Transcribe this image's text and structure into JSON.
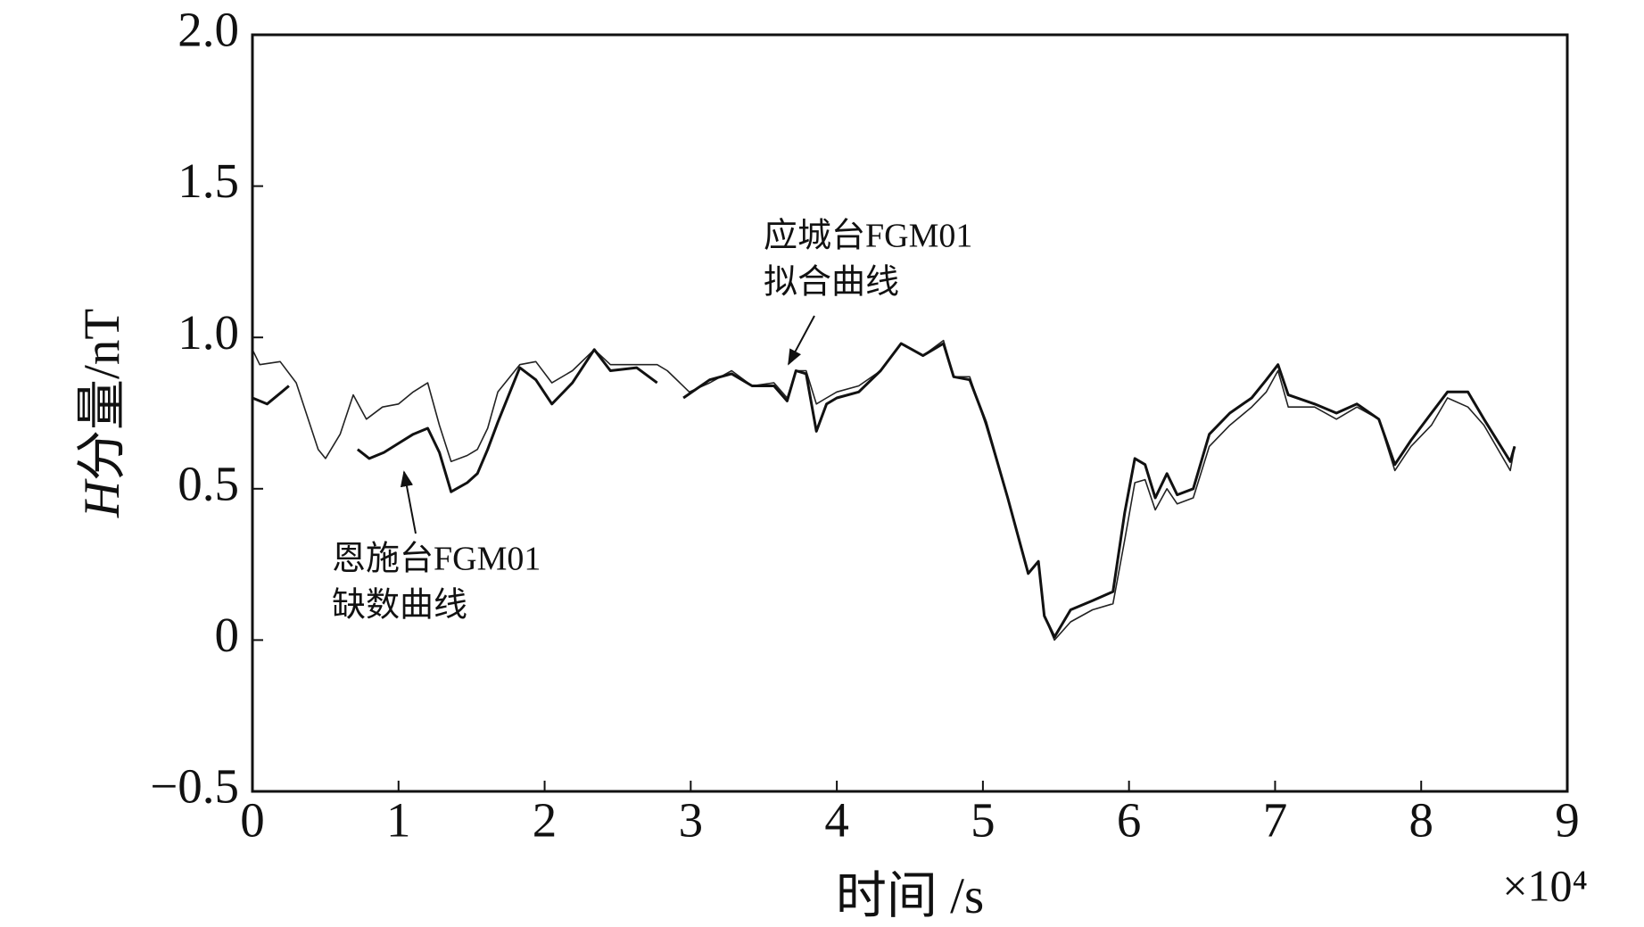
{
  "chart_data": {
    "type": "line",
    "xlabel": "时间 /s",
    "x_scale_label": "×10⁴",
    "ylabel_var": "H",
    "ylabel": "分量/nT",
    "xlim": [
      0,
      9
    ],
    "xticks": [
      0,
      1,
      2,
      3,
      4,
      5,
      6,
      7,
      8,
      9
    ],
    "ylim": [
      -0.5,
      2
    ],
    "yticks": [
      {
        "value": -0.5,
        "label": "−0.5"
      },
      0,
      0.5,
      {
        "value": 1,
        "label": "1.0"
      },
      1.5,
      {
        "value": 2,
        "label": "2.0"
      }
    ],
    "grid": false,
    "series": [
      {
        "color": "#222222",
        "x": [
          0,
          0.05,
          0.19,
          0.3,
          0.45,
          0.5,
          0.6,
          0.69,
          0.78,
          0.89,
          1.0,
          1.1,
          1.2,
          1.28,
          1.36,
          1.47,
          1.54,
          1.61,
          1.68,
          1.83,
          1.94,
          2.05,
          2.19,
          2.34,
          2.45,
          2.63,
          2.77,
          2.84,
          2.99,
          3.13,
          3.28,
          3.42,
          3.57,
          3.66,
          3.72,
          3.79,
          3.86,
          3.93,
          4.0,
          4.15,
          4.3,
          4.44,
          4.59,
          4.73,
          4.8,
          4.91,
          5.02,
          5.17,
          5.31,
          5.38,
          5.42,
          5.49,
          5.6,
          5.75,
          5.89,
          5.97,
          6.04,
          6.11,
          6.18,
          6.26,
          6.33,
          6.44,
          6.55,
          6.69,
          6.84,
          6.94,
          7.02,
          7.09,
          7.27,
          7.42,
          7.56,
          7.71,
          7.82,
          7.93,
          8.07,
          8.18,
          8.32,
          8.43,
          8.61,
          8.64
        ],
        "values": [
          0.96,
          0.91,
          0.92,
          0.85,
          0.63,
          0.6,
          0.68,
          0.81,
          0.73,
          0.77,
          0.78,
          0.82,
          0.85,
          0.71,
          0.59,
          0.61,
          0.63,
          0.7,
          0.82,
          0.91,
          0.92,
          0.85,
          0.89,
          0.96,
          0.91,
          0.91,
          0.91,
          0.89,
          0.82,
          0.85,
          0.89,
          0.84,
          0.85,
          0.8,
          0.89,
          0.89,
          0.78,
          0.8,
          0.82,
          0.84,
          0.89,
          0.98,
          0.94,
          0.99,
          0.87,
          0.87,
          0.71,
          0.47,
          0.22,
          0.26,
          0.08,
          0.0,
          0.06,
          0.1,
          0.12,
          0.33,
          0.52,
          0.53,
          0.43,
          0.5,
          0.45,
          0.47,
          0.64,
          0.71,
          0.77,
          0.82,
          0.89,
          0.77,
          0.77,
          0.73,
          0.77,
          0.73,
          0.56,
          0.64,
          0.71,
          0.8,
          0.77,
          0.71,
          0.56,
          0.64
        ],
        "width": 1.6
      },
      {
        "color": "#111111",
        "x": [
          0,
          0.1,
          0.2,
          0.25,
          0.3,
          0.72,
          0.8,
          0.9,
          1.0,
          1.1,
          1.2,
          1.28,
          1.36,
          1.47,
          1.54,
          1.61,
          1.68,
          1.83,
          1.94,
          2.05,
          2.19,
          2.34,
          2.45,
          2.63,
          2.77,
          2.8,
          2.95,
          3.13,
          3.28,
          3.42,
          3.57,
          3.66,
          3.72,
          3.79,
          3.86,
          3.93,
          4.0,
          4.15,
          4.3,
          4.44,
          4.59,
          4.73,
          4.8,
          4.91,
          5.02,
          5.17,
          5.31,
          5.38,
          5.42,
          5.49,
          5.6,
          5.75,
          5.89,
          5.97,
          6.04,
          6.11,
          6.18,
          6.26,
          6.33,
          6.44,
          6.55,
          6.69,
          6.84,
          6.94,
          7.02,
          7.09,
          7.27,
          7.42,
          7.56,
          7.71,
          7.82,
          7.93,
          8.07,
          8.18,
          8.32,
          8.43,
          8.61,
          8.64
        ],
        "values": [
          0.8,
          0.78,
          0.82,
          0.84,
          null,
          0.63,
          0.6,
          0.62,
          0.65,
          0.68,
          0.7,
          0.62,
          0.49,
          0.52,
          0.55,
          0.63,
          0.72,
          0.9,
          0.86,
          0.78,
          0.85,
          0.96,
          0.89,
          0.9,
          0.85,
          null,
          0.8,
          0.86,
          0.88,
          0.84,
          0.84,
          0.79,
          0.89,
          0.88,
          0.69,
          0.78,
          0.8,
          0.82,
          0.89,
          0.98,
          0.94,
          0.98,
          0.87,
          0.86,
          0.72,
          0.47,
          0.22,
          0.26,
          0.08,
          0.01,
          0.1,
          0.13,
          0.16,
          0.42,
          0.6,
          0.58,
          0.47,
          0.55,
          0.48,
          0.5,
          0.68,
          0.75,
          0.8,
          0.86,
          0.91,
          0.81,
          0.78,
          0.75,
          0.78,
          0.73,
          0.58,
          0.66,
          0.75,
          0.82,
          0.82,
          0.73,
          0.59,
          0.64
        ],
        "width": 3
      }
    ],
    "annotations": [
      {
        "lines": [
          "应城台FGM01",
          "拟合曲线"
        ],
        "series": 0
      },
      {
        "lines": [
          "恩施台FGM01",
          "缺数曲线"
        ],
        "series": 1
      }
    ]
  }
}
